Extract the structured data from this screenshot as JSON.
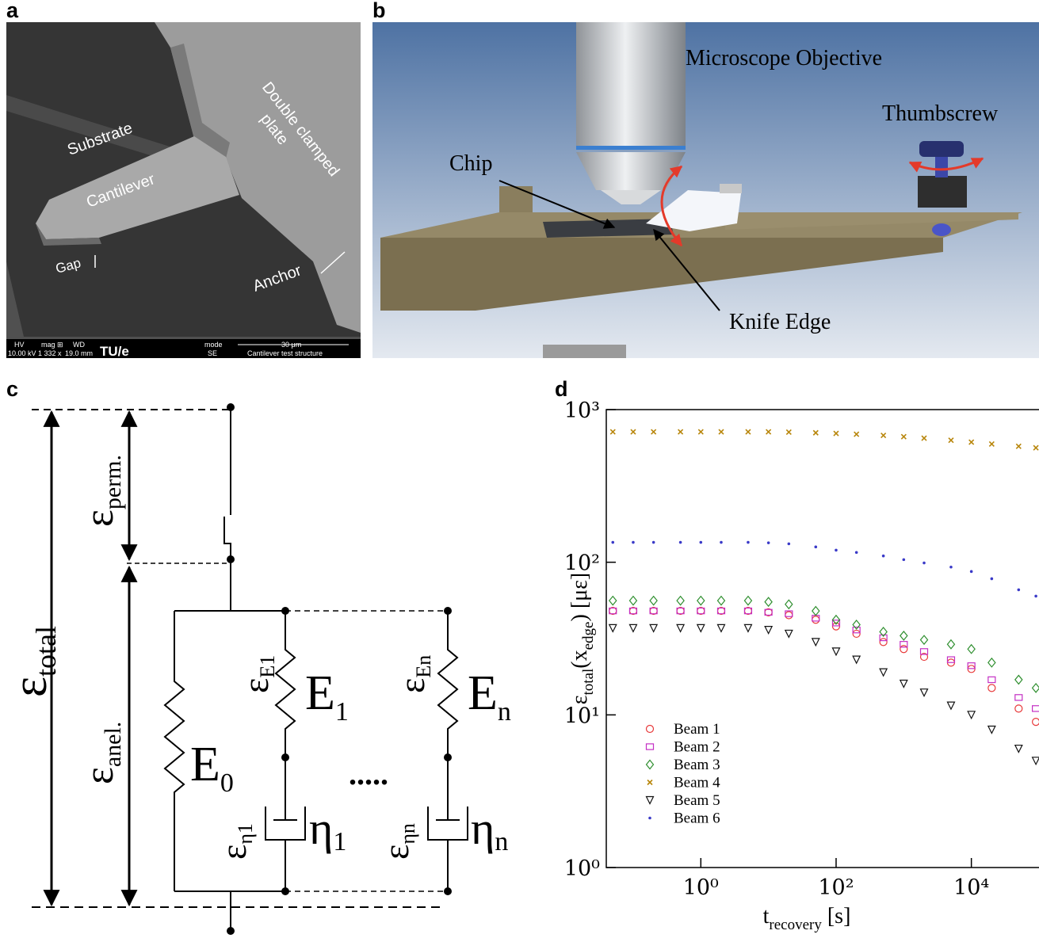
{
  "panels": {
    "a": {
      "label": "a",
      "substrate": "Substrate",
      "cantilever": "Cantilever",
      "plate": [
        "Double clamped",
        "plate"
      ],
      "gap": "Gap",
      "anchor": "Anchor",
      "info_bar": [
        "HV",
        "mag ⊞",
        "WD",
        "mode",
        "10.00 kV",
        "1 332 x",
        "19.0 mm",
        "TU/e",
        "SE",
        "30 μm",
        "Cantilever test structure"
      ]
    },
    "b": {
      "label": "b",
      "objective": "Microscope Objective",
      "thumbscrew": "Thumbscrew",
      "chip": "Chip",
      "knife": "Knife Edge"
    },
    "c": {
      "label": "c",
      "eps_total": {
        "main": "ε",
        "sub": "total"
      },
      "eps_perm": {
        "main": "ε",
        "sub": "perm."
      },
      "eps_anel": {
        "main": "ε",
        "sub": "anel."
      },
      "eps_E1": {
        "main": "ε",
        "sub": "E1"
      },
      "eps_En": {
        "main": "ε",
        "sub": "En"
      },
      "eps_eta1": {
        "main": "ε",
        "sub": "η1"
      },
      "eps_etan": {
        "main": "ε",
        "sub": "ηn"
      },
      "E0": {
        "main": "E",
        "sub": "0"
      },
      "E1": {
        "main": "E",
        "sub": "1"
      },
      "En": {
        "main": "E",
        "sub": "n"
      },
      "eta1": {
        "main": "η",
        "sub": "1"
      },
      "etan": {
        "main": "η",
        "sub": "n"
      },
      "dots": "....."
    }
  },
  "chart_data": {
    "type": "scatter",
    "panel_label": "d",
    "xlabel": [
      {
        "text": "t"
      },
      {
        "text": "recovery",
        "sub": true
      },
      {
        "text": " [s]"
      }
    ],
    "ylabel": [
      {
        "text": "ε"
      },
      {
        "text": "total",
        "sub": true
      },
      {
        "text": "(x"
      },
      {
        "text": "edge",
        "sub": true
      },
      {
        "text": ") [με]"
      }
    ],
    "log_x": true,
    "log_y": true,
    "grid": false,
    "legend": "lower left",
    "xlim": [
      0.04,
      100000
    ],
    "ylim": [
      1,
      1000
    ],
    "xticks": [
      {
        "value": 1,
        "label": "10⁰"
      },
      {
        "value": 100,
        "label": "10²"
      },
      {
        "value": 10000,
        "label": "10⁴"
      }
    ],
    "yticks": [
      {
        "value": 1,
        "label": "10⁰"
      },
      {
        "value": 10,
        "label": "10¹"
      },
      {
        "value": 100,
        "label": "10²"
      },
      {
        "value": 1000,
        "label": "10³"
      }
    ],
    "x": [
      0.05,
      0.1,
      0.2,
      0.5,
      1,
      2,
      5,
      10,
      20,
      50,
      100,
      200,
      500,
      1000,
      2000,
      5000,
      10000,
      20000,
      50000,
      90000
    ],
    "series": [
      {
        "name": "Beam 1",
        "color": "#e8393a",
        "marker": "circle",
        "values": [
          48,
          48,
          48,
          48,
          48,
          48,
          48,
          47,
          45,
          42,
          38,
          34,
          30,
          27,
          24,
          22,
          20,
          15,
          11,
          9
        ]
      },
      {
        "name": "Beam 2",
        "color": "#c42fc4",
        "marker": "square",
        "values": [
          48,
          48,
          48,
          48,
          48,
          48,
          48,
          47,
          46,
          43,
          40,
          36,
          32,
          29,
          26,
          23,
          21,
          17,
          13,
          11
        ]
      },
      {
        "name": "Beam 3",
        "color": "#2f8f2f",
        "marker": "diamond",
        "values": [
          56,
          56,
          56,
          56,
          56,
          56,
          56,
          55,
          53,
          48,
          42,
          39,
          35,
          33,
          31,
          29,
          27,
          22,
          17,
          15
        ]
      },
      {
        "name": "Beam 4",
        "color": "#b8860b",
        "marker": "x",
        "values": [
          715,
          715,
          715,
          715,
          715,
          715,
          715,
          715,
          712,
          705,
          698,
          690,
          678,
          665,
          650,
          630,
          612,
          595,
          575,
          562
        ]
      },
      {
        "name": "Beam 5",
        "color": "#111111",
        "marker": "triangle",
        "values": [
          37,
          37,
          37,
          37,
          37,
          37,
          37,
          36,
          34,
          30,
          26,
          23,
          19,
          16,
          14,
          11.5,
          10,
          8,
          6,
          5
        ]
      },
      {
        "name": "Beam 6",
        "color": "#3a3ac8",
        "marker": "dot",
        "values": [
          135,
          135,
          135,
          135,
          135,
          135,
          135,
          134,
          132,
          126,
          120,
          116,
          110,
          104,
          99,
          93,
          87,
          78,
          66,
          60
        ]
      }
    ]
  }
}
